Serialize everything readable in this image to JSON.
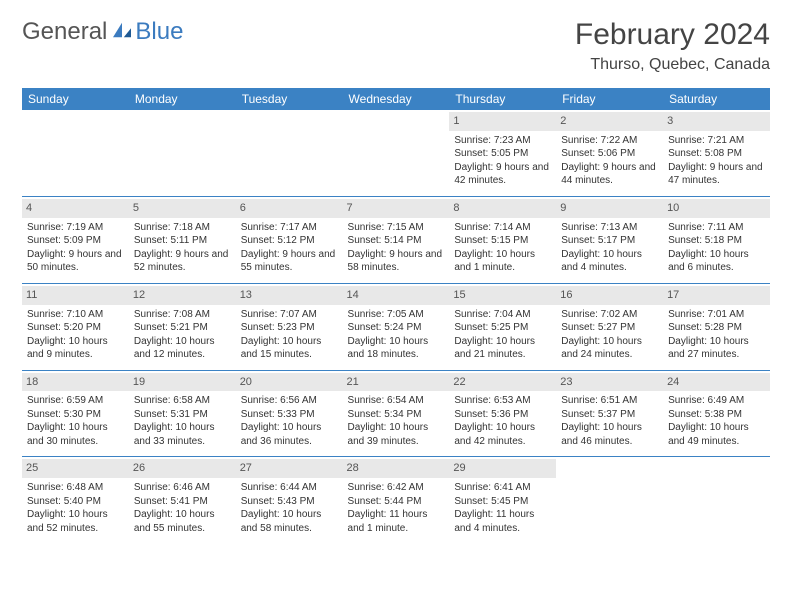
{
  "logo": {
    "text1": "General",
    "text2": "Blue"
  },
  "title": "February 2024",
  "location": "Thurso, Quebec, Canada",
  "headers": [
    "Sunday",
    "Monday",
    "Tuesday",
    "Wednesday",
    "Thursday",
    "Friday",
    "Saturday"
  ],
  "colors": {
    "header_bg": "#3b82c4",
    "header_text": "#ffffff",
    "daynum_bg": "#e8e8e8",
    "border": "#3b82c4",
    "logo_gray": "#555555",
    "logo_blue": "#3b7bbf"
  },
  "weeks": [
    [
      {
        "n": "",
        "sr": "",
        "ss": "",
        "dl": ""
      },
      {
        "n": "",
        "sr": "",
        "ss": "",
        "dl": ""
      },
      {
        "n": "",
        "sr": "",
        "ss": "",
        "dl": ""
      },
      {
        "n": "",
        "sr": "",
        "ss": "",
        "dl": ""
      },
      {
        "n": "1",
        "sr": "Sunrise: 7:23 AM",
        "ss": "Sunset: 5:05 PM",
        "dl": "Daylight: 9 hours and 42 minutes."
      },
      {
        "n": "2",
        "sr": "Sunrise: 7:22 AM",
        "ss": "Sunset: 5:06 PM",
        "dl": "Daylight: 9 hours and 44 minutes."
      },
      {
        "n": "3",
        "sr": "Sunrise: 7:21 AM",
        "ss": "Sunset: 5:08 PM",
        "dl": "Daylight: 9 hours and 47 minutes."
      }
    ],
    [
      {
        "n": "4",
        "sr": "Sunrise: 7:19 AM",
        "ss": "Sunset: 5:09 PM",
        "dl": "Daylight: 9 hours and 50 minutes."
      },
      {
        "n": "5",
        "sr": "Sunrise: 7:18 AM",
        "ss": "Sunset: 5:11 PM",
        "dl": "Daylight: 9 hours and 52 minutes."
      },
      {
        "n": "6",
        "sr": "Sunrise: 7:17 AM",
        "ss": "Sunset: 5:12 PM",
        "dl": "Daylight: 9 hours and 55 minutes."
      },
      {
        "n": "7",
        "sr": "Sunrise: 7:15 AM",
        "ss": "Sunset: 5:14 PM",
        "dl": "Daylight: 9 hours and 58 minutes."
      },
      {
        "n": "8",
        "sr": "Sunrise: 7:14 AM",
        "ss": "Sunset: 5:15 PM",
        "dl": "Daylight: 10 hours and 1 minute."
      },
      {
        "n": "9",
        "sr": "Sunrise: 7:13 AM",
        "ss": "Sunset: 5:17 PM",
        "dl": "Daylight: 10 hours and 4 minutes."
      },
      {
        "n": "10",
        "sr": "Sunrise: 7:11 AM",
        "ss": "Sunset: 5:18 PM",
        "dl": "Daylight: 10 hours and 6 minutes."
      }
    ],
    [
      {
        "n": "11",
        "sr": "Sunrise: 7:10 AM",
        "ss": "Sunset: 5:20 PM",
        "dl": "Daylight: 10 hours and 9 minutes."
      },
      {
        "n": "12",
        "sr": "Sunrise: 7:08 AM",
        "ss": "Sunset: 5:21 PM",
        "dl": "Daylight: 10 hours and 12 minutes."
      },
      {
        "n": "13",
        "sr": "Sunrise: 7:07 AM",
        "ss": "Sunset: 5:23 PM",
        "dl": "Daylight: 10 hours and 15 minutes."
      },
      {
        "n": "14",
        "sr": "Sunrise: 7:05 AM",
        "ss": "Sunset: 5:24 PM",
        "dl": "Daylight: 10 hours and 18 minutes."
      },
      {
        "n": "15",
        "sr": "Sunrise: 7:04 AM",
        "ss": "Sunset: 5:25 PM",
        "dl": "Daylight: 10 hours and 21 minutes."
      },
      {
        "n": "16",
        "sr": "Sunrise: 7:02 AM",
        "ss": "Sunset: 5:27 PM",
        "dl": "Daylight: 10 hours and 24 minutes."
      },
      {
        "n": "17",
        "sr": "Sunrise: 7:01 AM",
        "ss": "Sunset: 5:28 PM",
        "dl": "Daylight: 10 hours and 27 minutes."
      }
    ],
    [
      {
        "n": "18",
        "sr": "Sunrise: 6:59 AM",
        "ss": "Sunset: 5:30 PM",
        "dl": "Daylight: 10 hours and 30 minutes."
      },
      {
        "n": "19",
        "sr": "Sunrise: 6:58 AM",
        "ss": "Sunset: 5:31 PM",
        "dl": "Daylight: 10 hours and 33 minutes."
      },
      {
        "n": "20",
        "sr": "Sunrise: 6:56 AM",
        "ss": "Sunset: 5:33 PM",
        "dl": "Daylight: 10 hours and 36 minutes."
      },
      {
        "n": "21",
        "sr": "Sunrise: 6:54 AM",
        "ss": "Sunset: 5:34 PM",
        "dl": "Daylight: 10 hours and 39 minutes."
      },
      {
        "n": "22",
        "sr": "Sunrise: 6:53 AM",
        "ss": "Sunset: 5:36 PM",
        "dl": "Daylight: 10 hours and 42 minutes."
      },
      {
        "n": "23",
        "sr": "Sunrise: 6:51 AM",
        "ss": "Sunset: 5:37 PM",
        "dl": "Daylight: 10 hours and 46 minutes."
      },
      {
        "n": "24",
        "sr": "Sunrise: 6:49 AM",
        "ss": "Sunset: 5:38 PM",
        "dl": "Daylight: 10 hours and 49 minutes."
      }
    ],
    [
      {
        "n": "25",
        "sr": "Sunrise: 6:48 AM",
        "ss": "Sunset: 5:40 PM",
        "dl": "Daylight: 10 hours and 52 minutes."
      },
      {
        "n": "26",
        "sr": "Sunrise: 6:46 AM",
        "ss": "Sunset: 5:41 PM",
        "dl": "Daylight: 10 hours and 55 minutes."
      },
      {
        "n": "27",
        "sr": "Sunrise: 6:44 AM",
        "ss": "Sunset: 5:43 PM",
        "dl": "Daylight: 10 hours and 58 minutes."
      },
      {
        "n": "28",
        "sr": "Sunrise: 6:42 AM",
        "ss": "Sunset: 5:44 PM",
        "dl": "Daylight: 11 hours and 1 minute."
      },
      {
        "n": "29",
        "sr": "Sunrise: 6:41 AM",
        "ss": "Sunset: 5:45 PM",
        "dl": "Daylight: 11 hours and 4 minutes."
      },
      {
        "n": "",
        "sr": "",
        "ss": "",
        "dl": ""
      },
      {
        "n": "",
        "sr": "",
        "ss": "",
        "dl": ""
      }
    ]
  ]
}
